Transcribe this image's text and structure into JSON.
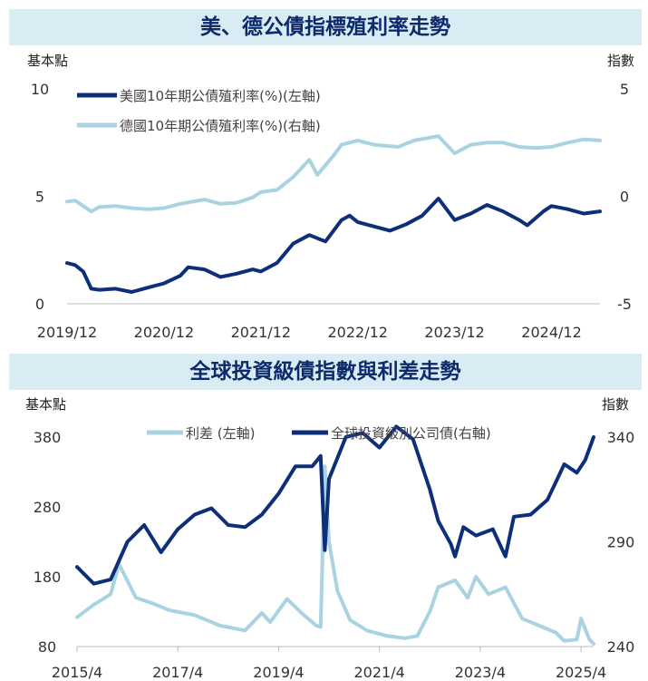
{
  "colors": {
    "dark": "#0d2f7a",
    "light": "#a9d3e0",
    "title_bg": "#d9ebf3",
    "title_text": "#0d2b6b"
  },
  "chart_data": [
    {
      "type": "line",
      "title": "美、德公債指標殖利率走勢",
      "left_unit": "基本點",
      "right_unit": "指數",
      "x_ticks": [
        "2019/12",
        "2020/12",
        "2021/12",
        "2022/12",
        "2023/12",
        "2024/12"
      ],
      "y_left": {
        "ticks": [
          "10",
          "5",
          "0"
        ],
        "range": [
          0,
          10
        ]
      },
      "y_right": {
        "ticks": [
          "5",
          "0",
          "-5"
        ],
        "range": [
          -5,
          5
        ]
      },
      "series": [
        {
          "name": "美國10年期公債殖利率(%)(左軸)",
          "axis": "left",
          "color": "#0d2f7a",
          "dates": [
            "2019/12",
            "2020/01",
            "2020/02",
            "2020/03",
            "2020/04",
            "2020/06",
            "2020/08",
            "2020/10",
            "2020/12",
            "2021/02",
            "2021/03",
            "2021/05",
            "2021/07",
            "2021/09",
            "2021/11",
            "2021/12",
            "2022/02",
            "2022/04",
            "2022/06",
            "2022/08",
            "2022/10",
            "2022/11",
            "2022/12",
            "2023/02",
            "2023/04",
            "2023/06",
            "2023/08",
            "2023/10",
            "2023/11",
            "2023/12",
            "2024/02",
            "2024/04",
            "2024/06",
            "2024/08",
            "2024/09",
            "2024/11",
            "2024/12",
            "2025/02",
            "2025/04",
            "2025/06"
          ],
          "values": [
            1.9,
            1.8,
            1.5,
            0.7,
            0.65,
            0.7,
            0.55,
            0.75,
            0.95,
            1.3,
            1.7,
            1.6,
            1.25,
            1.4,
            1.6,
            1.5,
            1.9,
            2.8,
            3.2,
            2.9,
            3.9,
            4.1,
            3.8,
            3.6,
            3.4,
            3.7,
            4.1,
            4.9,
            4.4,
            3.9,
            4.2,
            4.6,
            4.3,
            3.9,
            3.65,
            4.3,
            4.55,
            4.4,
            4.2,
            4.3
          ]
        },
        {
          "name": "德國10年期公債殖利率(%)(右軸)",
          "axis": "right",
          "color": "#a9d3e0",
          "dates": [
            "2019/12",
            "2020/01",
            "2020/03",
            "2020/04",
            "2020/06",
            "2020/08",
            "2020/10",
            "2020/12",
            "2021/02",
            "2021/05",
            "2021/07",
            "2021/09",
            "2021/11",
            "2021/12",
            "2022/02",
            "2022/04",
            "2022/06",
            "2022/07",
            "2022/09",
            "2022/10",
            "2022/12",
            "2023/02",
            "2023/05",
            "2023/07",
            "2023/10",
            "2023/12",
            "2024/02",
            "2024/04",
            "2024/06",
            "2024/08",
            "2024/10",
            "2024/12",
            "2025/02",
            "2025/04",
            "2025/06"
          ],
          "values": [
            -0.25,
            -0.2,
            -0.7,
            -0.5,
            -0.45,
            -0.55,
            -0.6,
            -0.55,
            -0.35,
            -0.15,
            -0.35,
            -0.3,
            -0.05,
            0.2,
            0.3,
            0.9,
            1.7,
            1.0,
            1.9,
            2.4,
            2.6,
            2.4,
            2.3,
            2.6,
            2.8,
            2.0,
            2.4,
            2.5,
            2.5,
            2.3,
            2.25,
            2.3,
            2.5,
            2.65,
            2.6
          ]
        }
      ]
    },
    {
      "type": "line",
      "title": "全球投資級債指數與利差走勢",
      "left_unit": "基本點",
      "right_unit": "指數",
      "x_ticks": [
        "2015/4",
        "2017/4",
        "2019/4",
        "2021/4",
        "2023/4",
        "2025/4"
      ],
      "y_left": {
        "ticks": [
          "380",
          "280",
          "180",
          "80"
        ],
        "range": [
          80,
          380
        ]
      },
      "y_right": {
        "ticks": [
          "340",
          "290",
          "240"
        ],
        "range": [
          240,
          340
        ]
      },
      "series": [
        {
          "name": "利差 (左軸)",
          "axis": "left",
          "color": "#a9d3e0",
          "dates": [
            "2015/4",
            "2015/8",
            "2015/12",
            "2016/02",
            "2016/06",
            "2016/10",
            "2017/02",
            "2017/08",
            "2018/02",
            "2018/08",
            "2018/12",
            "2019/02",
            "2019/06",
            "2019/10",
            "2020/01",
            "2020/02",
            "2020/03",
            "2020/04",
            "2020/06",
            "2020/09",
            "2021/01",
            "2021/06",
            "2021/10",
            "2022/01",
            "2022/04",
            "2022/06",
            "2022/10",
            "2023/01",
            "2023/03",
            "2023/06",
            "2023/10",
            "2024/02",
            "2024/06",
            "2024/10",
            "2024/12",
            "2025/03",
            "2025/04",
            "2025/06",
            "2025/07"
          ],
          "values": [
            122,
            140,
            155,
            198,
            150,
            142,
            132,
            125,
            110,
            103,
            128,
            115,
            148,
            125,
            110,
            108,
            338,
            230,
            160,
            118,
            103,
            95,
            92,
            95,
            130,
            165,
            175,
            150,
            180,
            155,
            165,
            120,
            110,
            100,
            88,
            90,
            120,
            90,
            84
          ]
        },
        {
          "name": "全球投資級別公司債(右軸)",
          "axis": "right",
          "color": "#0d2f7a",
          "dates": [
            "2015/4",
            "2015/8",
            "2015/12",
            "2016/04",
            "2016/08",
            "2016/12",
            "2017/04",
            "2017/08",
            "2017/12",
            "2018/04",
            "2018/08",
            "2018/12",
            "2019/04",
            "2019/08",
            "2019/12",
            "2020/02",
            "2020/03",
            "2020/04",
            "2020/08",
            "2020/12",
            "2021/04",
            "2021/08",
            "2021/12",
            "2022/04",
            "2022/06",
            "2022/09",
            "2022/10",
            "2022/12",
            "2023/03",
            "2023/07",
            "2023/10",
            "2023/12",
            "2024/04",
            "2024/08",
            "2024/12",
            "2025/03",
            "2025/05",
            "2025/07"
          ],
          "values": [
            278,
            270,
            272,
            290,
            298,
            285,
            296,
            303,
            306,
            298,
            297,
            303,
            313,
            326,
            326,
            331,
            286,
            320,
            340,
            342,
            335,
            345,
            339,
            315,
            300,
            289,
            283,
            297,
            293,
            296,
            283,
            302,
            303,
            310,
            327,
            323,
            329,
            340
          ]
        }
      ]
    }
  ]
}
